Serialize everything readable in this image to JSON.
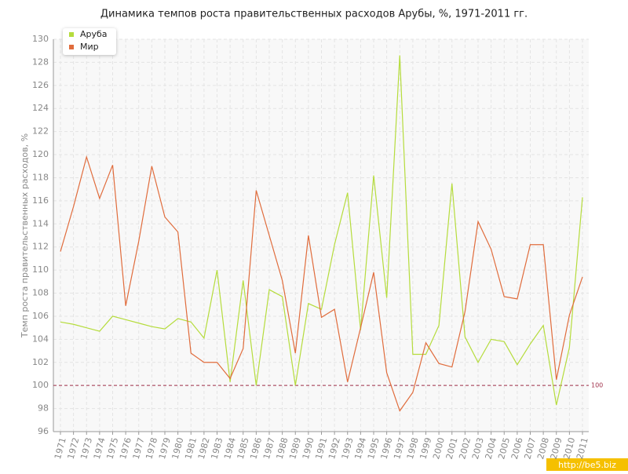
{
  "chart_data": {
    "type": "line",
    "title": "Динамика темпов роста правительственных расходов Арубы, %, 1971-2011 гг.",
    "y_label": "Темп роста правительственных расходов, %",
    "watermark": "http://be5.biz",
    "categories": [
      "1971",
      "1972",
      "1973",
      "1974",
      "1975",
      "1976",
      "1977",
      "1978",
      "1979",
      "1980",
      "1981",
      "1982",
      "1983",
      "1984",
      "1985",
      "1986",
      "1987",
      "1988",
      "1989",
      "1990",
      "1991",
      "1992",
      "1993",
      "1994",
      "1995",
      "1996",
      "1997",
      "1998",
      "1999",
      "2000",
      "2001",
      "2002",
      "2003",
      "2004",
      "2005",
      "2006",
      "2007",
      "2008",
      "2009",
      "2010",
      "2011"
    ],
    "series": [
      {
        "name": "Аруба",
        "color": "#b5dc3c",
        "values": [
          105.5,
          105.3,
          105.0,
          104.7,
          106.0,
          105.7,
          105.4,
          105.1,
          104.9,
          105.8,
          105.5,
          104.1,
          110.0,
          100.3,
          109.1,
          100.0,
          108.3,
          107.7,
          100.0,
          107.1,
          106.6,
          112.2,
          116.7,
          104.8,
          118.2,
          107.6,
          128.6,
          102.7,
          102.7,
          105.2,
          117.5,
          104.2,
          102.0,
          104.0,
          103.8,
          101.8,
          103.6,
          105.2,
          98.3,
          103.3,
          116.3
        ]
      },
      {
        "name": "Мир",
        "color": "#e06c3c",
        "values": [
          111.6,
          115.5,
          119.8,
          116.2,
          119.1,
          106.9,
          112.5,
          119.0,
          114.6,
          113.3,
          102.8,
          102.0,
          102.0,
          100.6,
          103.2,
          116.9,
          113.0,
          109.1,
          102.8,
          113.0,
          105.9,
          106.6,
          100.3,
          105.0,
          109.8,
          101.1,
          97.8,
          99.4,
          103.7,
          101.9,
          101.6,
          106.4,
          114.2,
          111.8,
          107.7,
          107.5,
          112.2,
          112.2,
          100.5,
          106.1,
          109.4
        ]
      }
    ],
    "reference_line": 100,
    "reference_color": "#a0304a",
    "ylim": [
      96,
      130
    ],
    "yticks": [
      96,
      98,
      100,
      102,
      104,
      106,
      108,
      110,
      112,
      114,
      116,
      118,
      120,
      122,
      124,
      126,
      128,
      130
    ],
    "grid": true,
    "legend": "top-left"
  }
}
